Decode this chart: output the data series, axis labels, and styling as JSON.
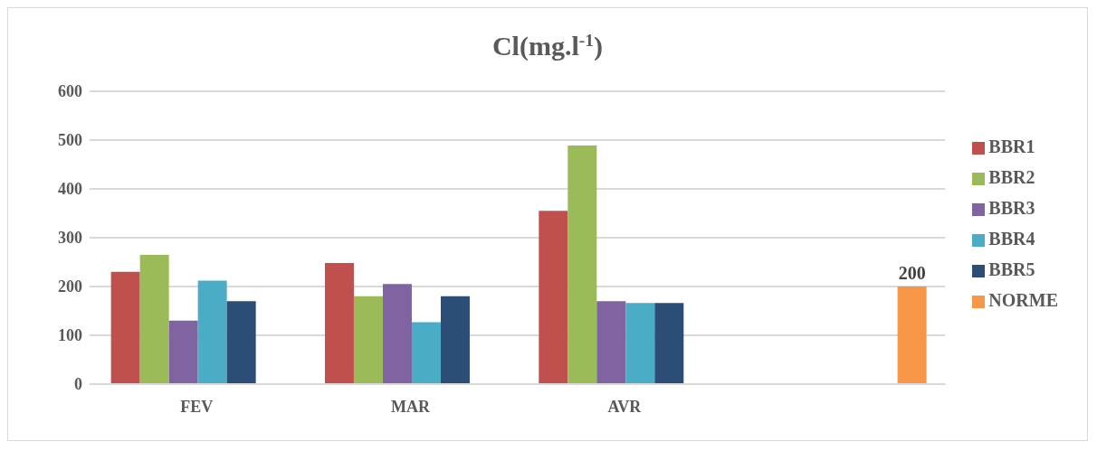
{
  "chart_data": {
    "type": "bar",
    "title": "Cl(mg.l$^{-1}$)",
    "categories": [
      "FEV",
      "MAR",
      "AVR",
      null
    ],
    "series": [
      {
        "name": "BBR1",
        "color": "#c0504d",
        "values": [
          230,
          248,
          355,
          null
        ]
      },
      {
        "name": "BBR2",
        "color": "#9bbb59",
        "values": [
          265,
          180,
          489,
          null
        ]
      },
      {
        "name": "BBR3",
        "color": "#8064a2",
        "values": [
          130,
          205,
          170,
          null
        ]
      },
      {
        "name": "BBR4",
        "color": "#4bacc6",
        "values": [
          212,
          127,
          166,
          null
        ]
      },
      {
        "name": "BBR5",
        "color": "#2c4d75",
        "values": [
          170,
          180,
          166,
          null
        ]
      },
      {
        "name": "NORME",
        "color": "#f79646",
        "values": [
          null,
          null,
          null,
          200
        ],
        "value_labels": [
          null,
          null,
          null,
          "200"
        ]
      }
    ],
    "ylim": [
      0,
      600
    ],
    "yticks": [
      0,
      100,
      200,
      300,
      400,
      500,
      600
    ],
    "grid": "y",
    "legend": "right"
  }
}
